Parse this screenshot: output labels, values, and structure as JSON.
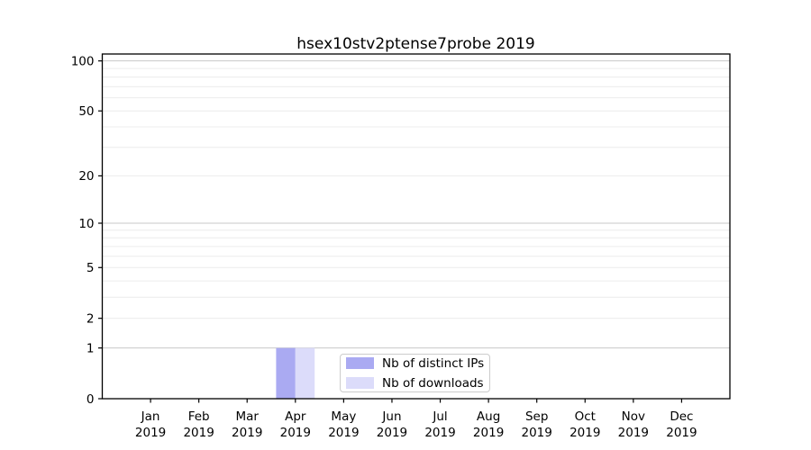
{
  "title": "hsex10stv2ptense7probe 2019",
  "chart_data": {
    "type": "bar",
    "title": "hsex10stv2ptense7probe 2019",
    "x_categories_line1": [
      "Jan",
      "Feb",
      "Mar",
      "Apr",
      "May",
      "Jun",
      "Jul",
      "Aug",
      "Sep",
      "Oct",
      "Nov",
      "Dec"
    ],
    "x_categories_line2": "2019",
    "series": [
      {
        "name": "Nb of distinct IPs",
        "color": "#aaaaf2",
        "values": [
          0,
          0,
          0,
          1,
          0,
          0,
          0,
          0,
          0,
          0,
          0,
          0
        ]
      },
      {
        "name": "Nb of downloads",
        "color": "#dcdcfa",
        "values": [
          0,
          0,
          0,
          1,
          0,
          0,
          0,
          0,
          0,
          0,
          0,
          0
        ]
      }
    ],
    "y_scale": "log1p",
    "y_ticks": [
      0,
      1,
      2,
      5,
      10,
      20,
      50,
      100
    ],
    "y_major_grid": [
      1,
      10,
      100
    ],
    "y_minor_grid": [
      2,
      3,
      4,
      5,
      6,
      7,
      8,
      9,
      20,
      30,
      40,
      50,
      60,
      70,
      80,
      90
    ],
    "ylim": [
      0,
      110
    ],
    "grid": true,
    "legend_position": "lower center",
    "colors": {
      "grid_major": "#c8c8c8",
      "grid_minor": "#ececec",
      "axis": "#000000",
      "background": "#ffffff"
    }
  }
}
